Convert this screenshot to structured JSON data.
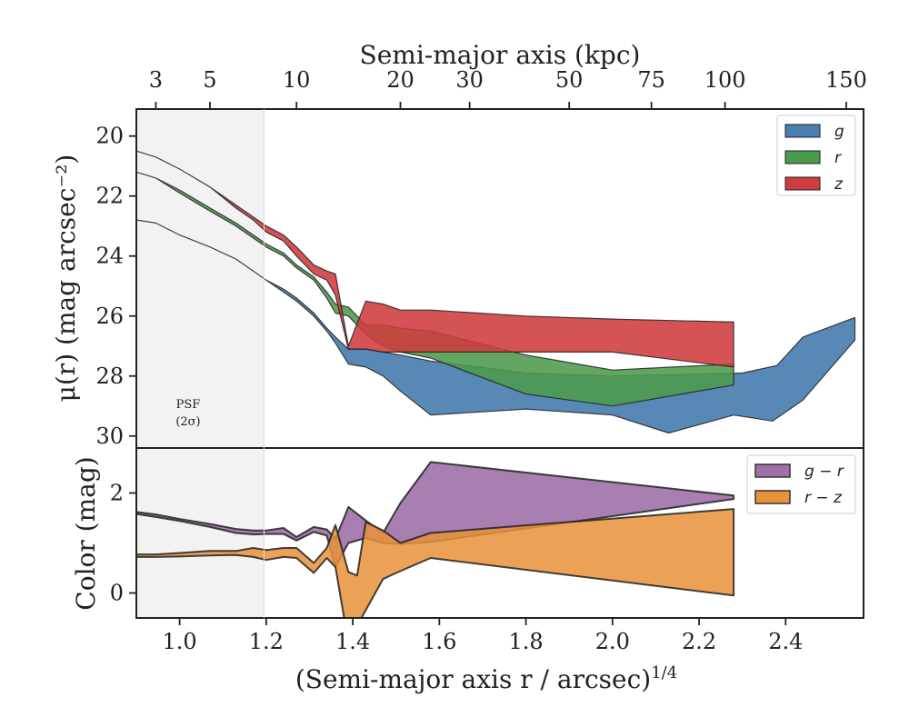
{
  "colors": {
    "g": "#4a7fb0",
    "r": "#4c9a4c",
    "z": "#cf3b3e",
    "g_minus_r": "#a070a8",
    "r_minus_z": "#e8923a",
    "psf_shade": "#f2f2f2",
    "edge": "#222222"
  },
  "chart_data": [
    {
      "type": "area",
      "name": "surface-brightness",
      "top_axis": {
        "label": "Semi-major axis (kpc)",
        "tick_labels": [
          "3",
          "5",
          "10",
          "20",
          "30",
          "50",
          "75",
          "100",
          "150"
        ],
        "tick_x": [
          0.945,
          1.07,
          1.27,
          1.51,
          1.67,
          1.9,
          2.09,
          2.26,
          2.54
        ]
      },
      "xlim": [
        0.9,
        2.58
      ],
      "ylim": [
        30.4,
        19.1
      ],
      "y_inverted": true,
      "ylabel": "μ(r) (mag arcsec⁻²)",
      "y_ticks": [
        20,
        22,
        24,
        26,
        28,
        30
      ],
      "y_tick_labels": [
        "20",
        "22",
        "24",
        "26",
        "28",
        "30"
      ],
      "psf_region": {
        "x_end": 1.195,
        "label_line1": "PSF",
        "label_line2": "(2σ)"
      },
      "legend": {
        "position": "top-right",
        "entries": [
          "g",
          "r",
          "z"
        ]
      },
      "series": [
        {
          "name": "g",
          "upper_x": [
            0.9,
            0.945,
            1.0,
            1.07,
            1.13,
            1.17,
            1.2,
            1.24,
            1.27,
            1.31,
            1.34,
            1.36,
            1.39,
            1.43,
            1.47,
            1.51,
            1.58,
            1.8,
            2.0,
            2.3,
            2.38,
            2.44,
            2.56
          ],
          "upper_y": [
            22.8,
            22.9,
            23.3,
            23.7,
            24.1,
            24.5,
            24.8,
            25.1,
            25.4,
            25.9,
            26.4,
            26.7,
            27.1,
            27.1,
            27.2,
            27.3,
            27.5,
            27.9,
            28.0,
            27.9,
            27.65,
            26.7,
            26.05
          ],
          "lower_x": [
            0.9,
            0.945,
            1.0,
            1.07,
            1.13,
            1.17,
            1.2,
            1.24,
            1.27,
            1.31,
            1.34,
            1.36,
            1.39,
            1.43,
            1.47,
            1.51,
            1.58,
            1.8,
            2.0,
            2.13,
            2.28,
            2.37,
            2.44,
            2.56
          ],
          "lower_y": [
            22.8,
            22.9,
            23.3,
            23.7,
            24.1,
            24.5,
            24.8,
            25.2,
            25.5,
            26.0,
            26.5,
            26.9,
            27.6,
            27.7,
            28.0,
            28.5,
            29.3,
            29.1,
            29.3,
            29.9,
            29.3,
            29.5,
            28.8,
            26.8
          ]
        },
        {
          "name": "r",
          "upper_x": [
            0.9,
            0.945,
            1.0,
            1.07,
            1.13,
            1.17,
            1.2,
            1.24,
            1.27,
            1.31,
            1.34,
            1.36,
            1.39,
            1.43,
            1.47,
            1.51,
            1.58,
            1.8,
            2.0,
            2.28
          ],
          "upper_y": [
            21.2,
            21.4,
            21.8,
            22.4,
            22.9,
            23.3,
            23.6,
            23.9,
            24.3,
            24.7,
            25.2,
            25.6,
            25.7,
            26.3,
            26.3,
            26.4,
            26.5,
            27.3,
            27.8,
            27.6
          ],
          "lower_x": [
            0.9,
            0.945,
            1.0,
            1.07,
            1.13,
            1.17,
            1.2,
            1.24,
            1.27,
            1.31,
            1.34,
            1.36,
            1.39,
            1.43,
            1.47,
            1.51,
            1.58,
            1.8,
            2.0,
            2.28
          ],
          "lower_y": [
            21.2,
            21.4,
            21.9,
            22.5,
            23.0,
            23.4,
            23.7,
            24.0,
            24.4,
            24.8,
            25.4,
            25.9,
            26.0,
            26.6,
            27.0,
            27.2,
            27.4,
            28.6,
            29.0,
            28.3
          ]
        },
        {
          "name": "z",
          "upper_x": [
            0.9,
            0.945,
            1.0,
            1.07,
            1.13,
            1.17,
            1.2,
            1.24,
            1.27,
            1.31,
            1.34,
            1.36,
            1.39,
            1.43,
            1.47,
            1.51,
            1.58,
            1.8,
            2.0,
            2.28
          ],
          "upper_y": [
            20.5,
            20.7,
            21.1,
            21.7,
            22.3,
            22.7,
            23.0,
            23.3,
            23.7,
            24.3,
            24.5,
            24.6,
            27.0,
            25.5,
            25.6,
            25.8,
            25.8,
            26.0,
            26.1,
            26.2
          ],
          "lower_x": [
            0.9,
            0.945,
            1.0,
            1.07,
            1.13,
            1.17,
            1.2,
            1.24,
            1.27,
            1.31,
            1.34,
            1.36,
            1.39,
            1.43,
            1.47,
            1.51,
            1.58,
            1.8,
            2.0,
            2.28
          ],
          "lower_y": [
            20.5,
            20.7,
            21.1,
            21.7,
            22.4,
            22.8,
            23.2,
            23.5,
            24.0,
            24.6,
            24.8,
            25.3,
            27.1,
            27.1,
            27.2,
            27.2,
            27.2,
            27.2,
            27.2,
            27.7
          ]
        }
      ]
    },
    {
      "type": "area",
      "name": "color-profile",
      "xlim": [
        0.9,
        2.58
      ],
      "ylim": [
        -0.5,
        2.9
      ],
      "xlabel": "(Semi-major axis r / arcsec)",
      "xlabel_superscript": "1/4",
      "ylabel": "Color (mag)",
      "x_ticks": [
        1.0,
        1.2,
        1.4,
        1.6,
        1.8,
        2.0,
        2.2,
        2.4
      ],
      "x_tick_labels": [
        "1.0",
        "1.2",
        "1.4",
        "1.6",
        "1.8",
        "2.0",
        "2.2",
        "2.4"
      ],
      "y_ticks": [
        0,
        2
      ],
      "y_tick_labels": [
        "0",
        "2"
      ],
      "psf_region": {
        "x_end": 1.195
      },
      "legend": {
        "position": "top-right",
        "entries": [
          "g − r",
          "r − z"
        ]
      },
      "series": [
        {
          "name": "g − r",
          "upper_x": [
            0.9,
            0.945,
            1.0,
            1.07,
            1.13,
            1.17,
            1.2,
            1.24,
            1.27,
            1.31,
            1.34,
            1.36,
            1.39,
            1.43,
            1.47,
            1.51,
            1.58,
            2.28
          ],
          "upper_y": [
            1.62,
            1.57,
            1.48,
            1.38,
            1.28,
            1.25,
            1.25,
            1.3,
            1.12,
            1.32,
            1.27,
            1.08,
            1.72,
            1.45,
            1.2,
            1.8,
            2.62,
            1.95
          ],
          "lower_x": [
            0.9,
            0.945,
            1.0,
            1.07,
            1.13,
            1.17,
            1.2,
            1.24,
            1.27,
            1.31,
            1.34,
            1.36,
            1.39,
            1.43,
            1.47,
            1.51,
            1.58,
            2.28
          ],
          "lower_y": [
            1.58,
            1.52,
            1.44,
            1.32,
            1.2,
            1.17,
            1.18,
            1.18,
            1.05,
            1.22,
            1.15,
            0.52,
            1.0,
            1.1,
            1.0,
            0.98,
            1.02,
            1.88
          ]
        },
        {
          "name": "r − z",
          "upper_x": [
            0.9,
            0.945,
            1.0,
            1.07,
            1.13,
            1.17,
            1.2,
            1.24,
            1.27,
            1.31,
            1.34,
            1.36,
            1.39,
            1.41,
            1.43,
            1.47,
            1.51,
            1.58,
            2.28
          ],
          "upper_y": [
            0.77,
            0.77,
            0.8,
            0.84,
            0.84,
            0.9,
            0.86,
            0.9,
            0.9,
            0.6,
            0.9,
            1.36,
            0.42,
            0.35,
            1.42,
            1.25,
            1.0,
            1.2,
            1.68
          ],
          "lower_x": [
            0.9,
            0.945,
            1.0,
            1.07,
            1.13,
            1.17,
            1.2,
            1.24,
            1.27,
            1.31,
            1.34,
            1.36,
            1.38,
            1.4,
            1.42,
            1.47,
            1.5,
            1.58,
            2.28
          ],
          "lower_y": [
            0.72,
            0.72,
            0.73,
            0.75,
            0.76,
            0.72,
            0.66,
            0.72,
            0.7,
            0.4,
            0.7,
            0.52,
            -0.5,
            -0.5,
            -0.5,
            0.28,
            0.4,
            0.7,
            -0.05
          ]
        }
      ]
    }
  ]
}
